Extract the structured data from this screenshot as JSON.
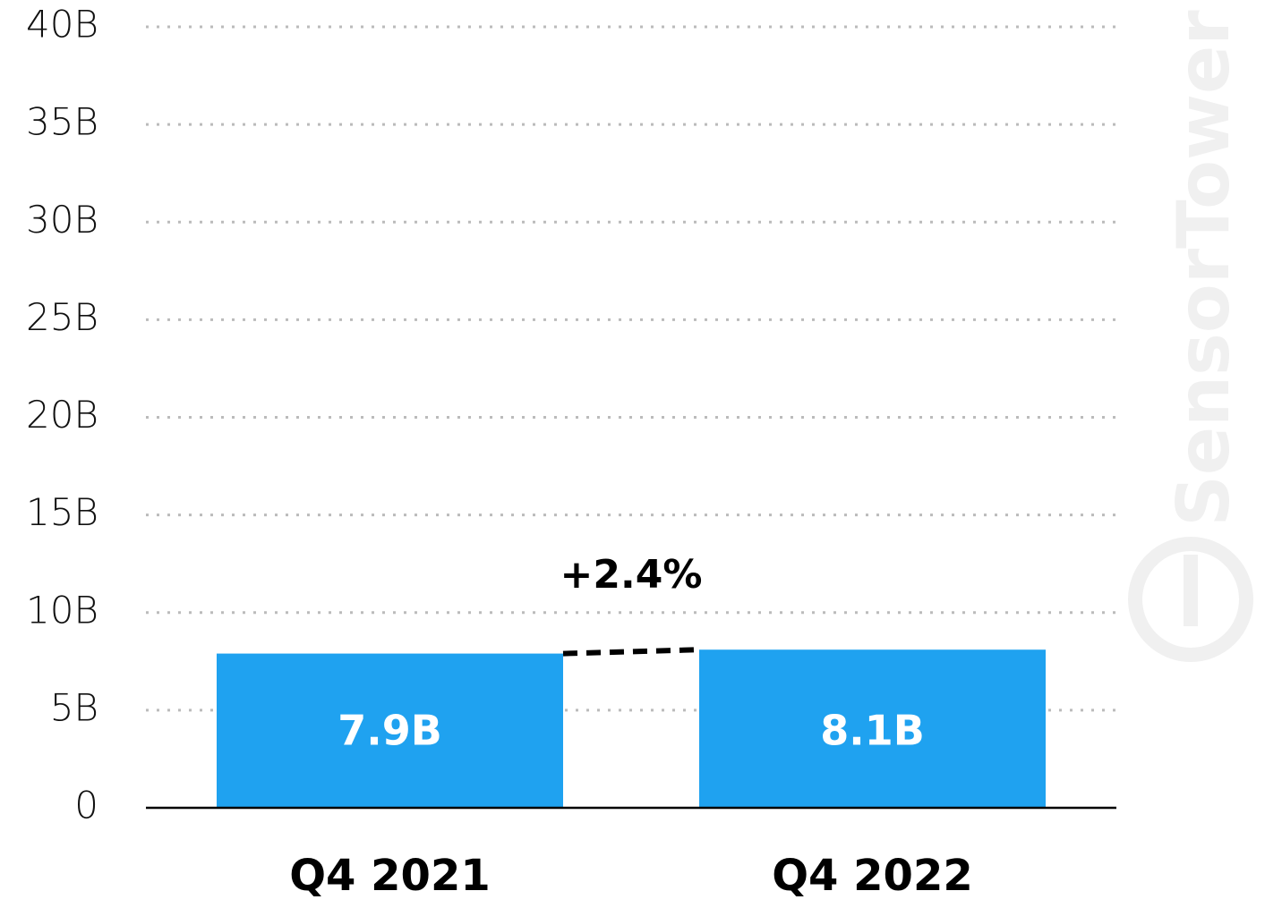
{
  "chart_data": {
    "type": "bar",
    "categories": [
      "Q4 2021",
      "Q4 2022"
    ],
    "values": [
      7.9,
      8.1
    ],
    "value_labels": [
      "7.9B",
      "8.1B"
    ],
    "color": "#1fa2f0",
    "ylim": [
      0,
      40
    ],
    "yticks": [
      0,
      {
        "value": 5,
        "label": "5B"
      },
      {
        "value": 10,
        "label": "10B"
      },
      {
        "value": 15,
        "label": "15B"
      },
      {
        "value": 20,
        "label": "20B"
      },
      {
        "value": 25,
        "label": "25B"
      },
      {
        "value": 30,
        "label": "30B"
      },
      {
        "value": 35,
        "label": "35B"
      },
      {
        "value": 40,
        "label": "40B"
      }
    ],
    "grid": true,
    "annotation": "+2.4%",
    "watermark": "SensorTower"
  }
}
